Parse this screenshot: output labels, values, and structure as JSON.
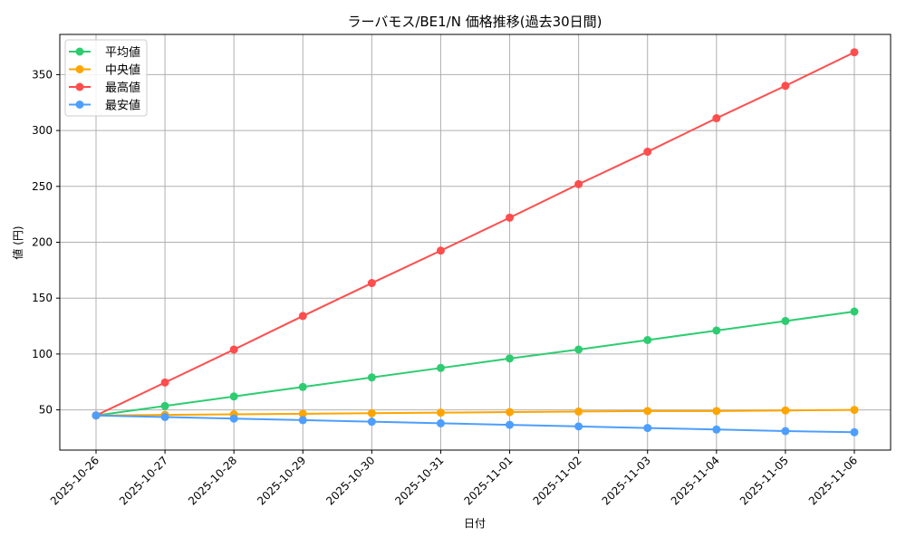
{
  "chart_data": {
    "type": "line",
    "title": "ラーバモス/BE1/N 価格推移(過去30日間)",
    "xlabel": "日付",
    "ylabel": "値 (円)",
    "ylim": [
      14,
      386
    ],
    "yticks": [
      50,
      100,
      150,
      200,
      250,
      300,
      350
    ],
    "grid": true,
    "legend_position": "top-left",
    "categories": [
      "2025-10-26",
      "2025-10-27",
      "2025-10-28",
      "2025-10-29",
      "2025-10-30",
      "2025-10-31",
      "2025-11-01",
      "2025-11-02",
      "2025-11-03",
      "2025-11-04",
      "2025-11-05",
      "2025-11-06"
    ],
    "series": [
      {
        "name": "平均値",
        "color": "#2ecc71",
        "values": [
          45,
          53.5,
          62,
          70.5,
          79,
          87.5,
          96,
          104,
          112.5,
          121,
          129.5,
          138
        ]
      },
      {
        "name": "中央値",
        "color": "#ffa500",
        "values": [
          45,
          45.5,
          46,
          46.5,
          47,
          47.5,
          48,
          48.5,
          49,
          49,
          49.5,
          50
        ]
      },
      {
        "name": "最高値",
        "color": "#ff4d4d",
        "values": [
          45,
          74.5,
          104,
          134,
          163.5,
          192.5,
          222,
          252,
          281,
          311,
          340,
          370
        ]
      },
      {
        "name": "最安値",
        "color": "#4d9eff",
        "values": [
          45,
          43.6,
          42.2,
          40.8,
          39.4,
          38,
          36.6,
          35.2,
          33.8,
          32.4,
          31,
          30
        ]
      }
    ]
  }
}
